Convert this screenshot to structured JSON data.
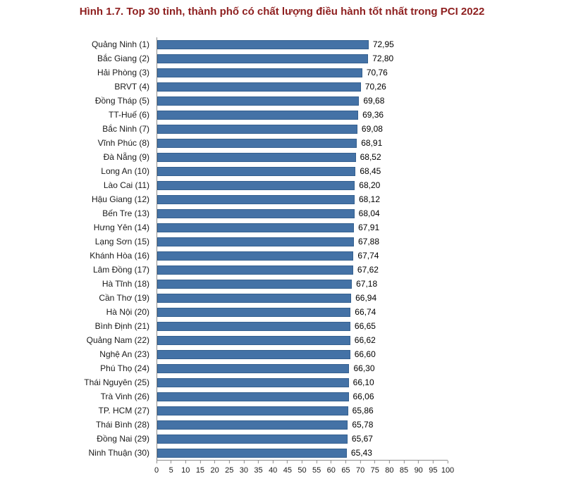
{
  "chart_data": {
    "type": "bar",
    "orientation": "horizontal",
    "title": "Hình 1.7. Top 30 tỉnh, thành phố có chất lượng điều hành tốt nhất trong PCI 2022",
    "categories": [
      "Quảng Ninh (1)",
      "Bắc Giang (2)",
      "Hải Phòng (3)",
      "BRVT (4)",
      "Đồng Tháp (5)",
      "TT-Huế (6)",
      "Bắc Ninh (7)",
      "Vĩnh Phúc (8)",
      "Đà Nẵng (9)",
      "Long An (10)",
      "Lào Cai (11)",
      "Hậu Giang (12)",
      "Bến Tre (13)",
      "Hưng Yên (14)",
      "Lạng Sơn (15)",
      "Khánh Hòa (16)",
      "Lâm Đồng (17)",
      "Hà Tĩnh (18)",
      "Cần Thơ (19)",
      "Hà Nội (20)",
      "Bình Định (21)",
      "Quảng Nam (22)",
      "Nghệ An (23)",
      "Phú Thọ (24)",
      "Thái Nguyên (25)",
      "Trà Vinh (26)",
      "TP. HCM (27)",
      "Thái Bình (28)",
      "Đồng Nai (29)",
      "Ninh Thuận (30)"
    ],
    "values": [
      72.95,
      72.8,
      70.76,
      70.26,
      69.68,
      69.36,
      69.08,
      68.91,
      68.52,
      68.45,
      68.2,
      68.12,
      68.04,
      67.91,
      67.88,
      67.74,
      67.62,
      67.18,
      66.94,
      66.74,
      66.65,
      66.62,
      66.6,
      66.3,
      66.1,
      66.06,
      65.86,
      65.78,
      65.67,
      65.43
    ],
    "value_labels": [
      "72,95",
      "72,80",
      "70,76",
      "70,26",
      "69,68",
      "69,36",
      "69,08",
      "68,91",
      "68,52",
      "68,45",
      "68,20",
      "68,12",
      "68,04",
      "67,91",
      "67,88",
      "67,74",
      "67,62",
      "67,18",
      "66,94",
      "66,74",
      "66,65",
      "66,62",
      "66,60",
      "66,30",
      "66,10",
      "66,06",
      "65,86",
      "65,78",
      "65,67",
      "65,43"
    ],
    "xlabel": "",
    "ylabel": "",
    "xlim": [
      0,
      100
    ],
    "x_ticks": [
      0,
      5,
      10,
      15,
      20,
      25,
      30,
      35,
      40,
      45,
      50,
      55,
      60,
      65,
      70,
      75,
      80,
      85,
      90,
      95,
      100
    ],
    "grid": "off",
    "legend": "none",
    "bar_color": "#4472a6",
    "bar_border_color": "#35608f",
    "title_color": "#8e1f1f"
  }
}
